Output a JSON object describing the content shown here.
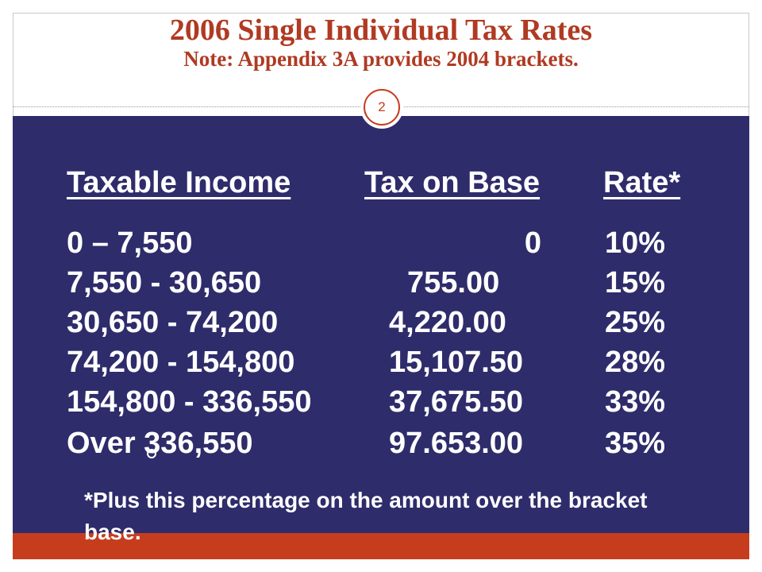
{
  "slide": {
    "title": "2006 Single Individual Tax Rates",
    "subtitle": "Note: Appendix 3A provides 2004 brackets.",
    "slide_number": "2"
  },
  "table": {
    "headers": {
      "income": "Taxable Income",
      "base": "Tax on Base",
      "rate": "Rate*"
    },
    "rows": [
      {
        "income": "0 – 7,550",
        "base": "0",
        "rate": "10%"
      },
      {
        "income": "7,550 - 30,650",
        "base": "755.00",
        "rate": "15%"
      },
      {
        "income": "30,650 - 74,200",
        "base": "4,220.00",
        "rate": "25%"
      },
      {
        "income": "74,200 - 154,800",
        "base": "15,107.50",
        "rate": "28%"
      },
      {
        "income": "154,800 - 336,550",
        "base": "37,675.50",
        "rate": "33%"
      },
      {
        "income": "Over 336,550",
        "base": "97.653.00",
        "rate": "35%"
      }
    ],
    "footnote": "*Plus this percentage on the amount over the bracket base."
  },
  "colors": {
    "title": "#b03a22",
    "panel": "#2e2c6b",
    "accent_bar": "#c63d1e"
  }
}
